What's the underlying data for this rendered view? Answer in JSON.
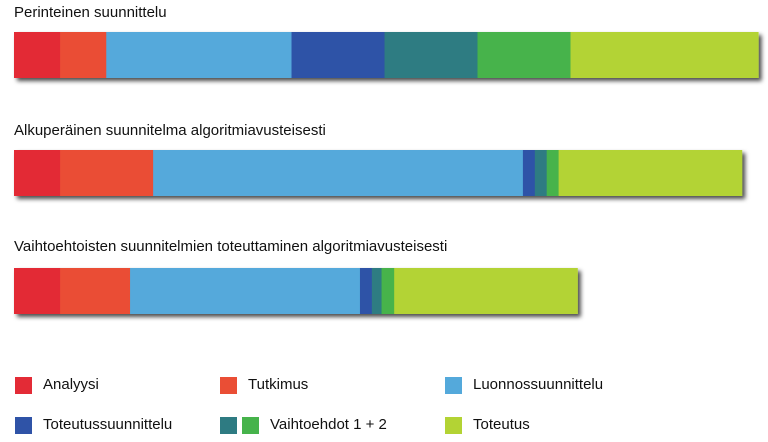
{
  "chart_data": {
    "type": "bar",
    "stacked": true,
    "orientation": "horizontal",
    "categories": [
      "Perinteinen suunnittelu",
      "Alkuperäinen suunnitelma algoritmiavusteisesti",
      "Vaihtoehtoisten suunnitelmien toteuttaminen algoritmiavusteisesti"
    ],
    "series": [
      {
        "name": "Analyysi",
        "color": "#e32b36",
        "values": [
          6.2,
          6.2,
          6.2
        ]
      },
      {
        "name": "Tutkimus",
        "color": "#ea4e35",
        "values": [
          6.2,
          12.5,
          9.4
        ]
      },
      {
        "name": "Luonnossuunnittelu",
        "color": "#54a9db",
        "values": [
          24.9,
          49.7,
          30.9
        ]
      },
      {
        "name": "Toteutussuunnittelu",
        "color": "#2f53a7",
        "values": [
          12.5,
          1.6,
          1.6
        ]
      },
      {
        "name": "Vaihtoehto 1",
        "color": "#2e7b82",
        "values": [
          12.5,
          1.6,
          1.3
        ]
      },
      {
        "name": "Vaihtoehto 2",
        "color": "#46b34b",
        "values": [
          12.5,
          1.6,
          1.7
        ]
      },
      {
        "name": "Toteutus",
        "color": "#b3d334",
        "values": [
          25.2,
          24.6,
          24.6
        ]
      }
    ],
    "xlim": [
      0,
      100
    ],
    "grid": false,
    "legend_position": "bottom"
  },
  "legend": [
    {
      "label": "Analyysi",
      "colors": [
        "#e32b36"
      ]
    },
    {
      "label": "Tutkimus",
      "colors": [
        "#ea4e35"
      ]
    },
    {
      "label": "Luonnossuunnittelu",
      "colors": [
        "#54a9db"
      ]
    },
    {
      "label": "Toteutussuunnittelu",
      "colors": [
        "#2f53a7"
      ]
    },
    {
      "label": "Vaihtoehdot 1 + 2",
      "colors": [
        "#2e7b82",
        "#46b34b"
      ]
    },
    {
      "label": "Toteutus",
      "colors": [
        "#b3d334"
      ]
    }
  ]
}
